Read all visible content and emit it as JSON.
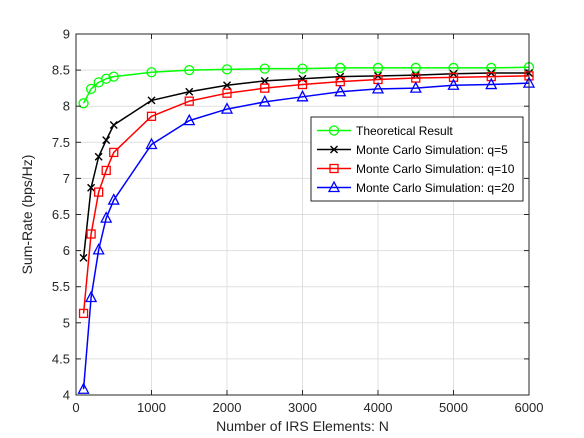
{
  "chart_data": {
    "type": "line",
    "title": "",
    "xlabel": "Number of IRS Elements: N",
    "ylabel": "Sum-Rate (bps/Hz)",
    "xlim": [
      0,
      6000
    ],
    "ylim": [
      4,
      9
    ],
    "xticks": [
      0,
      1000,
      2000,
      3000,
      4000,
      5000,
      6000
    ],
    "yticks": [
      4,
      4.5,
      5,
      5.5,
      6,
      6.5,
      7,
      7.5,
      8,
      8.5,
      9
    ],
    "grid": true,
    "legend_position": "center-right",
    "series": [
      {
        "name": "Theoretical Result",
        "color": "#00ff00",
        "marker": "circle",
        "x": [
          100,
          200,
          300,
          400,
          500,
          1000,
          1500,
          2000,
          2500,
          3000,
          3500,
          4000,
          4500,
          5000,
          5500,
          6000
        ],
        "y": [
          8.04,
          8.24,
          8.33,
          8.38,
          8.41,
          8.47,
          8.5,
          8.51,
          8.52,
          8.52,
          8.53,
          8.53,
          8.53,
          8.53,
          8.53,
          8.54
        ]
      },
      {
        "name": "Monte Carlo Simulation: q=5",
        "color": "#000000",
        "marker": "x",
        "x": [
          100,
          200,
          300,
          400,
          500,
          1000,
          1500,
          2000,
          2500,
          3000,
          3500,
          4000,
          4500,
          5000,
          5500,
          6000
        ],
        "y": [
          5.9,
          6.87,
          7.3,
          7.53,
          7.74,
          8.08,
          8.2,
          8.29,
          8.35,
          8.38,
          8.41,
          8.42,
          8.43,
          8.45,
          8.46,
          8.46
        ]
      },
      {
        "name": "Monte Carlo Simulation: q=10",
        "color": "#ff0000",
        "marker": "square",
        "x": [
          100,
          200,
          300,
          400,
          500,
          1000,
          1500,
          2000,
          2500,
          3000,
          3500,
          4000,
          4500,
          5000,
          5500,
          6000
        ],
        "y": [
          5.13,
          6.23,
          6.81,
          7.11,
          7.36,
          7.86,
          8.07,
          8.18,
          8.25,
          8.3,
          8.34,
          8.37,
          8.39,
          8.4,
          8.41,
          8.42
        ]
      },
      {
        "name": "Monte Carlo Simulation: q=20",
        "color": "#0000ff",
        "marker": "triangle",
        "x": [
          100,
          200,
          300,
          400,
          500,
          1000,
          1500,
          2000,
          2500,
          3000,
          3500,
          4000,
          4500,
          5000,
          5500,
          6000
        ],
        "y": [
          4.08,
          5.35,
          6.01,
          6.45,
          6.7,
          7.47,
          7.8,
          7.96,
          8.06,
          8.13,
          8.2,
          8.24,
          8.25,
          8.29,
          8.3,
          8.32
        ]
      }
    ]
  }
}
